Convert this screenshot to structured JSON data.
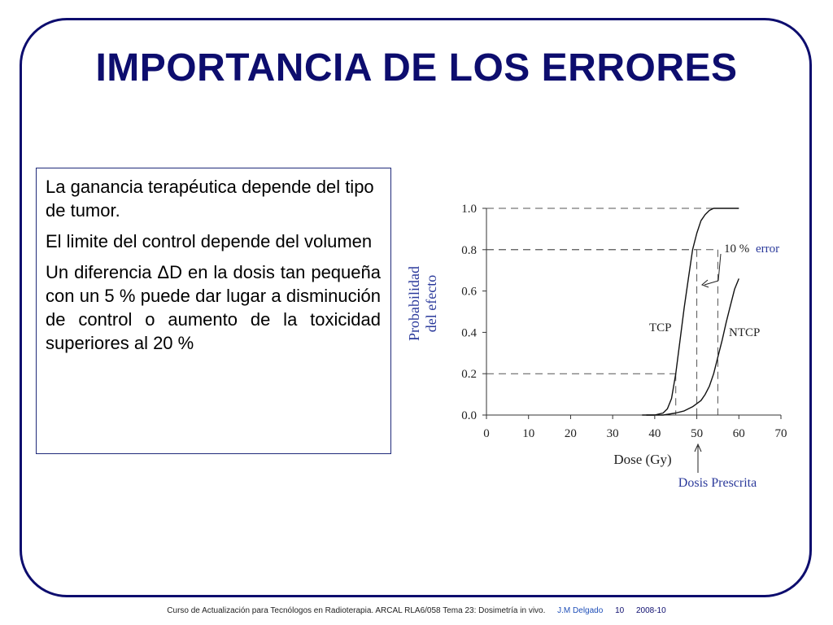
{
  "slide": {
    "title": "IMPORTANCIA DE LOS ERRORES",
    "paragraphs": [
      "La ganancia terapéutica depende del tipo de tumor.",
      "El limite del control depende del volumen",
      "Un diferencia ΔD en la dosis tan pequeña con un 5 % puede dar lugar a disminución de control o aumento de la toxicidad superiores al 20 %"
    ]
  },
  "footer": {
    "course": "Curso de Actualización para Tecnólogos en Radioterapia.  ARCAL RLA6/058   Tema 23:  Dosimetría in vivo.",
    "author": "J.M Delgado",
    "page": "10",
    "date": "2008-10"
  },
  "colors": {
    "accent": "#0d0d6e",
    "annotation": "#2b3a9b",
    "footer_link": "#1f4fb8"
  },
  "chart_data": {
    "type": "line",
    "xlabel": "Dose (Gy)",
    "ylabel": "Probabilidad del efecto",
    "xlim": [
      0,
      70
    ],
    "ylim": [
      0,
      1.0
    ],
    "xticks": [
      0,
      10,
      20,
      30,
      40,
      50,
      60,
      70
    ],
    "yticks": [
      0.0,
      0.2,
      0.4,
      0.6,
      0.8,
      1.0
    ],
    "ytick_labels": [
      "0.0",
      "0.2",
      "0.4",
      "0.6",
      "0.8",
      "1.0"
    ],
    "series": [
      {
        "name": "TCP",
        "x": [
          37,
          40,
          42,
          43,
          44,
          45,
          46,
          47,
          48,
          49,
          50,
          51,
          52,
          53,
          54,
          55,
          57,
          60
        ],
        "y": [
          0.0,
          0.0,
          0.01,
          0.03,
          0.08,
          0.2,
          0.36,
          0.52,
          0.66,
          0.8,
          0.88,
          0.94,
          0.97,
          0.99,
          1.0,
          1.0,
          1.0,
          1.0
        ]
      },
      {
        "name": "NTCP",
        "x": [
          38,
          42,
          45,
          47,
          49,
          51,
          52,
          53,
          54,
          55,
          56,
          57,
          58,
          59,
          60
        ],
        "y": [
          0.0,
          0.0,
          0.01,
          0.02,
          0.04,
          0.07,
          0.1,
          0.14,
          0.2,
          0.28,
          0.36,
          0.45,
          0.53,
          0.61,
          0.66
        ]
      }
    ],
    "reference_lines": [
      {
        "x": 45,
        "y": 0.2
      },
      {
        "x": 50,
        "y": 0.8
      },
      {
        "x": 55,
        "y": 0.8
      }
    ],
    "annotations": {
      "error_pct": "10 %",
      "error_word": "error",
      "prescribed": "Dosis Prescrita"
    }
  }
}
